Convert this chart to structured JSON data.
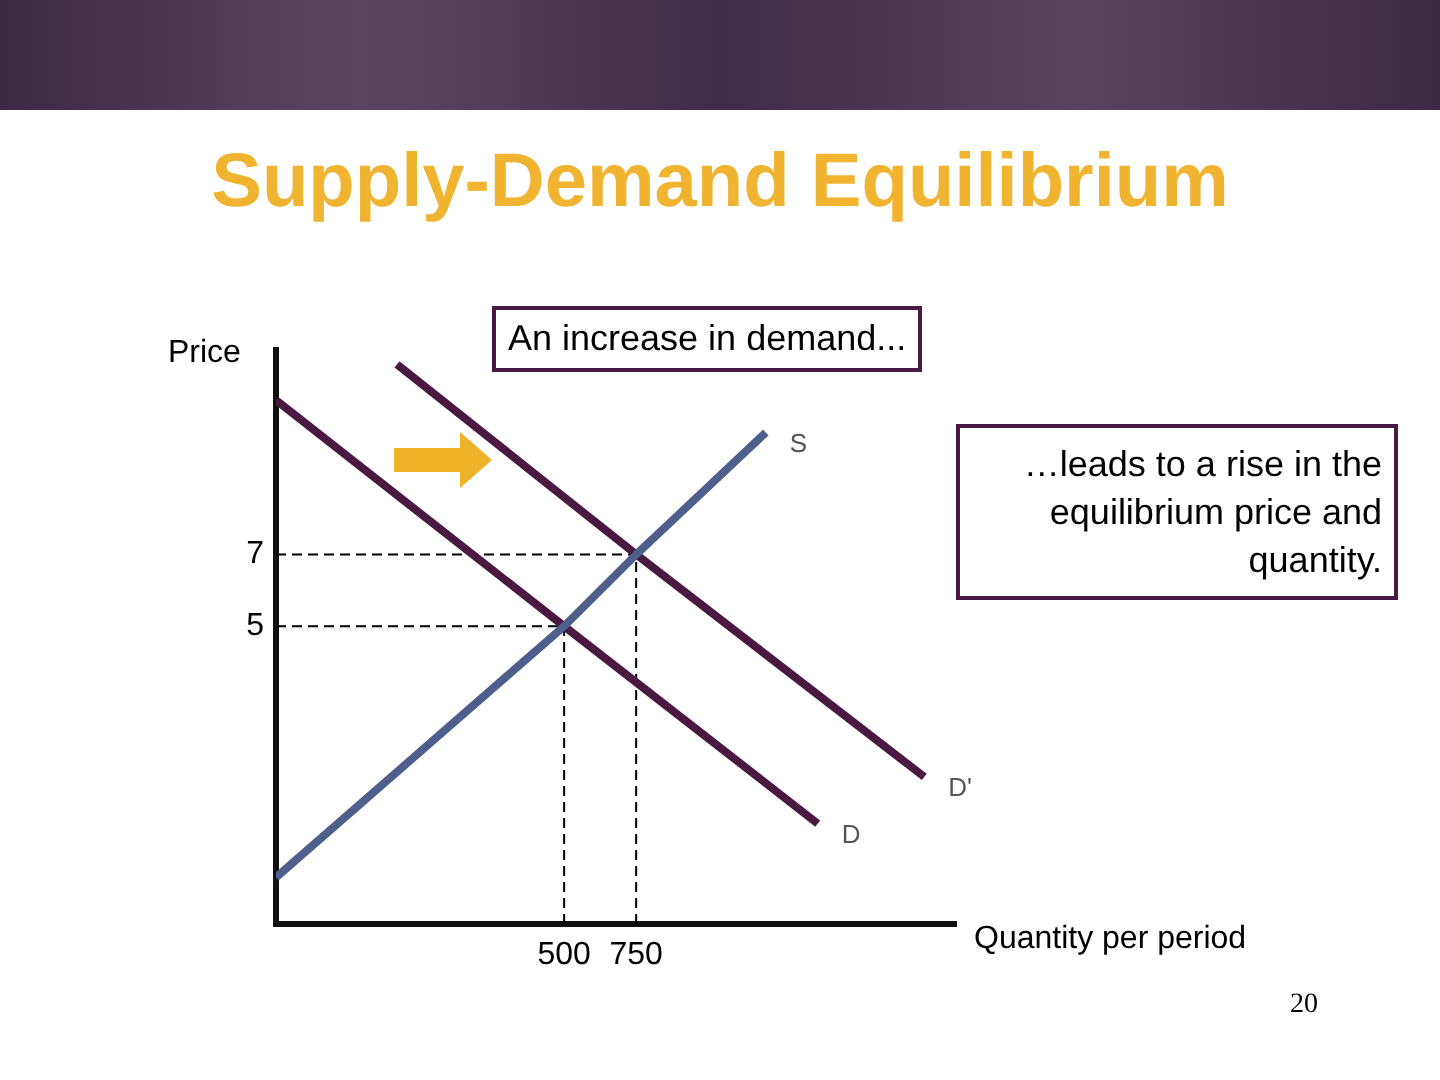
{
  "chart_data": {
    "type": "line",
    "title": "Supply-Demand Equilibrium",
    "xlabel": "Quantity per period",
    "ylabel": "Price",
    "annotations": [
      "An increase in demand...",
      "…leads to a rise in the equilibrium price and quantity.",
      "20"
    ],
    "xlim": [
      -500,
      1860
    ],
    "ylim": [
      -3.3,
      12.7
    ],
    "xticks": [
      500,
      750
    ],
    "yticks": [
      5,
      7
    ],
    "grid": false,
    "legend": false,
    "marker": "none",
    "series": [
      {
        "name": "S",
        "color": "#4e5f8c",
        "x": [
          -500,
          500,
          750,
          1200
        ],
        "values": [
          -2,
          5,
          7,
          10.4
        ]
      },
      {
        "name": "D",
        "color": "#4a1942",
        "x": [
          -500,
          500,
          1380
        ],
        "values": [
          11.3,
          5,
          -0.5
        ]
      },
      {
        "name": "D'",
        "color": "#4a1942",
        "x": [
          -80,
          750,
          1750
        ],
        "values": [
          12.3,
          7,
          0.8
        ]
      },
      {
        "color": "#000000",
        "line_style": "dashed",
        "x": [
          -500,
          750
        ],
        "values": [
          7,
          7
        ]
      },
      {
        "color": "#000000",
        "line_style": "dashed",
        "x": [
          -500,
          500
        ],
        "values": [
          5,
          5
        ]
      },
      {
        "color": "#000000",
        "line_style": "dashed",
        "x": [
          500,
          500
        ],
        "values": [
          -3.3,
          5
        ]
      },
      {
        "color": "#000000",
        "line_style": "dashed",
        "x": [
          750,
          750
        ],
        "values": [
          -3.3,
          7
        ]
      }
    ]
  }
}
